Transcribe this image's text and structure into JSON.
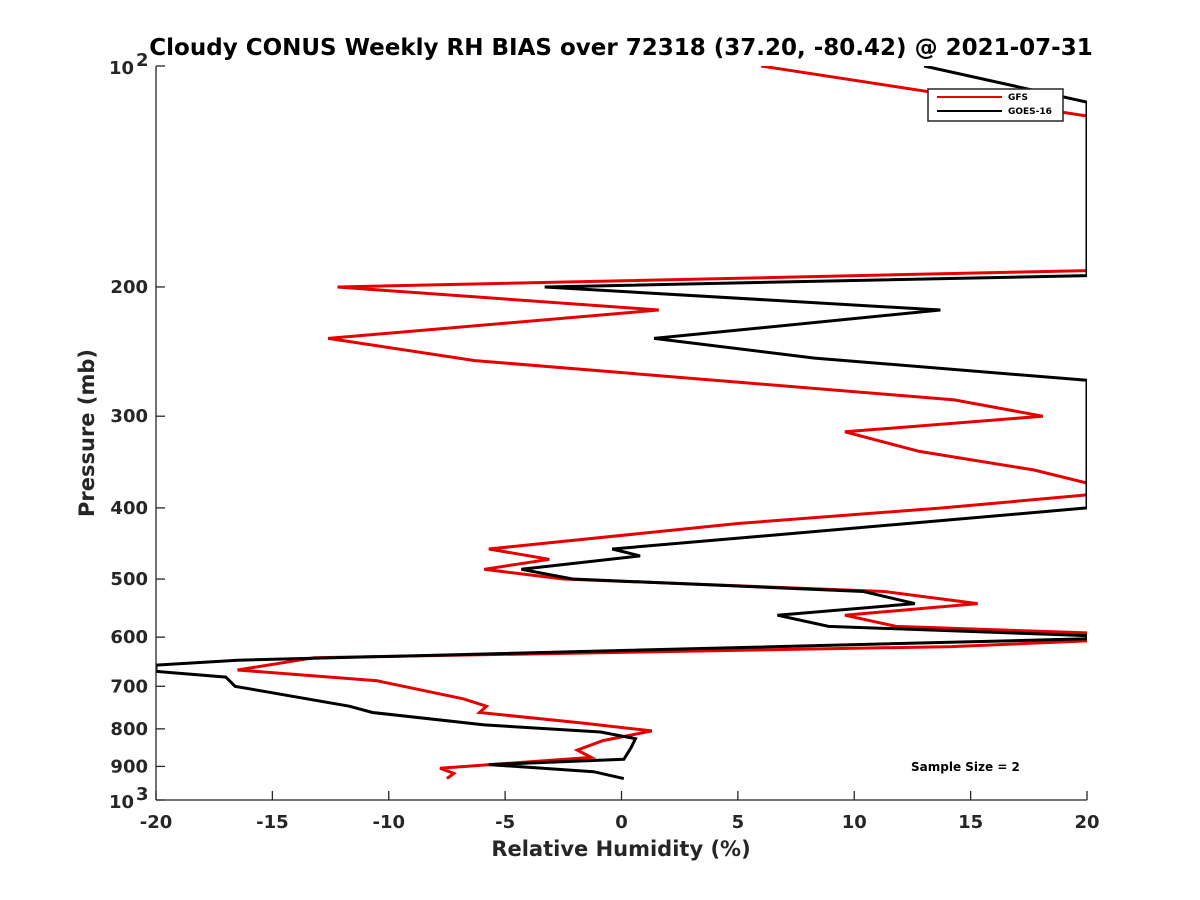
{
  "chart_data": {
    "type": "line",
    "title": "Cloudy CONUS Weekly RH BIAS over 72318 (37.20, -80.42) @ 2021-07-31",
    "xlabel": "Relative Humidity (%)",
    "ylabel": "Pressure (mb)",
    "xlim": [
      -20,
      20
    ],
    "ylim": [
      100,
      1000
    ],
    "yscale": "log",
    "yreversed": true,
    "xticks": [
      -20,
      -15,
      -10,
      -5,
      0,
      5,
      10,
      15,
      20
    ],
    "yticks": [
      {
        "value": 100,
        "base": "10",
        "exp": "2"
      },
      {
        "value": 200,
        "label": "200"
      },
      {
        "value": 300,
        "label": "300"
      },
      {
        "value": 400,
        "label": "400"
      },
      {
        "value": 500,
        "label": "500"
      },
      {
        "value": 600,
        "label": "600"
      },
      {
        "value": 700,
        "label": "700"
      },
      {
        "value": 800,
        "label": "800"
      },
      {
        "value": 900,
        "label": "900"
      },
      {
        "value": 1000,
        "base": "10",
        "exp": "3"
      }
    ],
    "legend_position": "top-right",
    "annotation": "Sample Size = 2",
    "series": [
      {
        "name": "GFS",
        "color": "#e60000",
        "points": [
          [
            6,
            100
          ],
          [
            20,
            117
          ],
          [
            20,
            190
          ],
          [
            -12.2,
            200
          ],
          [
            1.6,
            215
          ],
          [
            -12.6,
            235
          ],
          [
            -6.3,
            252
          ],
          [
            14.3,
            285
          ],
          [
            18.1,
            300
          ],
          [
            9.6,
            315
          ],
          [
            12.8,
            335
          ],
          [
            17.7,
            355
          ],
          [
            20,
            370
          ],
          [
            20,
            384
          ],
          [
            13.8,
            400
          ],
          [
            5,
            420
          ],
          [
            -5.7,
            455
          ],
          [
            -3.1,
            470
          ],
          [
            -5.9,
            485
          ],
          [
            -2.5,
            500
          ],
          [
            11.3,
            520
          ],
          [
            15.3,
            540
          ],
          [
            9.6,
            560
          ],
          [
            11.8,
            580
          ],
          [
            20,
            592
          ],
          [
            20,
            607
          ],
          [
            14.2,
            618
          ],
          [
            -13.2,
            640
          ],
          [
            -16.5,
            665
          ],
          [
            -10.5,
            688
          ],
          [
            -6.8,
            728
          ],
          [
            -5.8,
            745
          ],
          [
            -6.1,
            760
          ],
          [
            -1.8,
            785
          ],
          [
            1.3,
            805
          ],
          [
            -0.8,
            830
          ],
          [
            -1.9,
            855
          ],
          [
            -1.3,
            875
          ],
          [
            -7.8,
            905
          ],
          [
            -7.2,
            920
          ],
          [
            -7.5,
            935
          ]
        ]
      },
      {
        "name": "GOES-16",
        "color": "#000000",
        "points": [
          [
            13,
            100
          ],
          [
            20,
            112
          ],
          [
            20,
            193
          ],
          [
            -3.3,
            200
          ],
          [
            13.7,
            215
          ],
          [
            1.4,
            235
          ],
          [
            8.3,
            250
          ],
          [
            20,
            268
          ],
          [
            20,
            400
          ],
          [
            12.3,
            420
          ],
          [
            -0.4,
            455
          ],
          [
            0.8,
            465
          ],
          [
            -4.3,
            485
          ],
          [
            -2.1,
            500
          ],
          [
            10.4,
            520
          ],
          [
            12.6,
            540
          ],
          [
            6.7,
            560
          ],
          [
            8.9,
            580
          ],
          [
            20,
            597
          ],
          [
            20,
            603
          ],
          [
            -16.5,
            645
          ],
          [
            -20,
            655
          ],
          [
            -20,
            668
          ],
          [
            -17,
            680
          ],
          [
            -16.6,
            700
          ],
          [
            -11.7,
            745
          ],
          [
            -10.7,
            760
          ],
          [
            -5.9,
            790
          ],
          [
            -0.9,
            808
          ],
          [
            0.6,
            825
          ],
          [
            0.4,
            850
          ],
          [
            0.1,
            880
          ],
          [
            -5.7,
            895
          ],
          [
            -1.2,
            915
          ],
          [
            0.1,
            935
          ]
        ]
      }
    ]
  }
}
